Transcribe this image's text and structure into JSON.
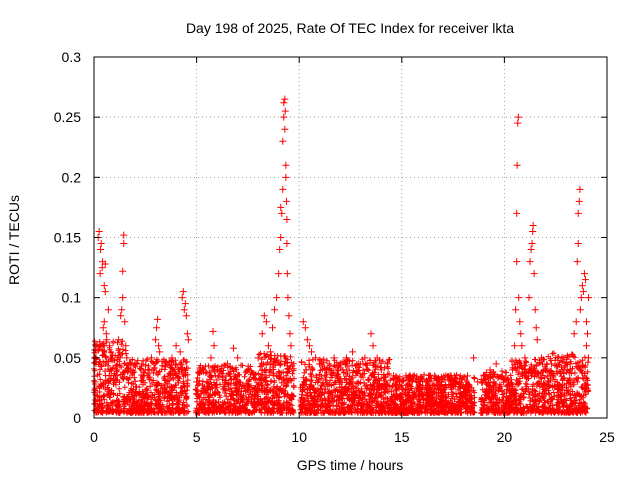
{
  "chart_data": {
    "type": "scatter",
    "title": "Day 198 of 2025, Rate Of TEC Index for receiver lkta",
    "xlabel": "GPS time / hours",
    "ylabel": "ROTI / TECUs",
    "xlim": [
      0,
      25
    ],
    "ylim": [
      0,
      0.3
    ],
    "x_ticks": [
      0,
      5,
      10,
      15,
      20,
      25
    ],
    "x_tick_labels": [
      "0",
      "5",
      "10",
      "15",
      "20",
      "25"
    ],
    "y_ticks": [
      0,
      0.05,
      0.1,
      0.15,
      0.2,
      0.25,
      0.3
    ],
    "y_tick_labels": [
      "0",
      "0.05",
      "0.1",
      "0.15",
      "0.2",
      "0.25",
      "0.3"
    ],
    "grid": true,
    "marker": "+",
    "color": "#ff0000",
    "series": [
      {
        "name": "ROTI",
        "points": [
          [
            0.05,
            0.03
          ],
          [
            0.1,
            0.05
          ],
          [
            0.15,
            0.06
          ],
          [
            0.2,
            0.15
          ],
          [
            0.25,
            0.155
          ],
          [
            0.3,
            0.12
          ],
          [
            0.32,
            0.14
          ],
          [
            0.35,
            0.145
          ],
          [
            0.4,
            0.125
          ],
          [
            0.42,
            0.13
          ],
          [
            0.45,
            0.075
          ],
          [
            0.5,
            0.08
          ],
          [
            0.5,
            0.11
          ],
          [
            0.55,
            0.105
          ],
          [
            0.55,
            0.128
          ],
          [
            0.6,
            0.07
          ],
          [
            0.62,
            0.065
          ],
          [
            0.7,
            0.09
          ],
          [
            0.75,
            0.06
          ],
          [
            0.8,
            0.05
          ],
          [
            1.2,
            0.065
          ],
          [
            1.3,
            0.085
          ],
          [
            1.35,
            0.09
          ],
          [
            1.4,
            0.1
          ],
          [
            1.4,
            0.122
          ],
          [
            1.45,
            0.145
          ],
          [
            1.45,
            0.152
          ],
          [
            1.5,
            0.08
          ],
          [
            1.55,
            0.06
          ],
          [
            1.6,
            0.05
          ],
          [
            1.8,
            0.04
          ],
          [
            2.0,
            0.045
          ],
          [
            2.5,
            0.04
          ],
          [
            2.8,
            0.05
          ],
          [
            3.0,
            0.065
          ],
          [
            3.05,
            0.075
          ],
          [
            3.1,
            0.082
          ],
          [
            3.15,
            0.06
          ],
          [
            3.2,
            0.055
          ],
          [
            3.5,
            0.045
          ],
          [
            3.8,
            0.05
          ],
          [
            4.0,
            0.06
          ],
          [
            4.2,
            0.055
          ],
          [
            4.3,
            0.1
          ],
          [
            4.35,
            0.105
          ],
          [
            4.4,
            0.09
          ],
          [
            4.45,
            0.095
          ],
          [
            4.5,
            0.085
          ],
          [
            4.55,
            0.07
          ],
          [
            4.6,
            0.065
          ],
          [
            4.2,
            0.045
          ],
          [
            5.0,
            0.03
          ],
          [
            5.5,
            0.03
          ],
          [
            5.7,
            0.05
          ],
          [
            5.8,
            0.072
          ],
          [
            5.85,
            0.06
          ],
          [
            6.0,
            0.04
          ],
          [
            6.5,
            0.045
          ],
          [
            6.8,
            0.058
          ],
          [
            7.0,
            0.05
          ],
          [
            7.5,
            0.04
          ],
          [
            8.0,
            0.05
          ],
          [
            8.2,
            0.07
          ],
          [
            8.3,
            0.085
          ],
          [
            8.4,
            0.08
          ],
          [
            8.5,
            0.06
          ],
          [
            8.6,
            0.055
          ],
          [
            8.7,
            0.075
          ],
          [
            8.8,
            0.09
          ],
          [
            8.9,
            0.1
          ],
          [
            9.0,
            0.12
          ],
          [
            9.05,
            0.14
          ],
          [
            9.1,
            0.15
          ],
          [
            9.1,
            0.175
          ],
          [
            9.15,
            0.17
          ],
          [
            9.2,
            0.19
          ],
          [
            9.2,
            0.23
          ],
          [
            9.25,
            0.25
          ],
          [
            9.25,
            0.262
          ],
          [
            9.3,
            0.265
          ],
          [
            9.3,
            0.24
          ],
          [
            9.32,
            0.255
          ],
          [
            9.35,
            0.21
          ],
          [
            9.35,
            0.2
          ],
          [
            9.38,
            0.18
          ],
          [
            9.4,
            0.165
          ],
          [
            9.4,
            0.145
          ],
          [
            9.42,
            0.12
          ],
          [
            9.45,
            0.1
          ],
          [
            9.5,
            0.085
          ],
          [
            9.55,
            0.07
          ],
          [
            9.6,
            0.06
          ],
          [
            10.2,
            0.08
          ],
          [
            10.3,
            0.075
          ],
          [
            10.4,
            0.065
          ],
          [
            10.5,
            0.06
          ],
          [
            10.6,
            0.055
          ],
          [
            10.8,
            0.05
          ],
          [
            11.0,
            0.045
          ],
          [
            11.3,
            0.04
          ],
          [
            11.7,
            0.05
          ],
          [
            12.0,
            0.045
          ],
          [
            12.3,
            0.05
          ],
          [
            12.6,
            0.055
          ],
          [
            12.9,
            0.045
          ],
          [
            13.2,
            0.05
          ],
          [
            13.5,
            0.07
          ],
          [
            13.6,
            0.06
          ],
          [
            13.8,
            0.05
          ],
          [
            14.0,
            0.04
          ],
          [
            14.3,
            0.045
          ],
          [
            14.6,
            0.035
          ],
          [
            14.9,
            0.03
          ],
          [
            15.2,
            0.035
          ],
          [
            15.5,
            0.03
          ],
          [
            15.8,
            0.032
          ],
          [
            16.2,
            0.03
          ],
          [
            16.6,
            0.035
          ],
          [
            17.0,
            0.032
          ],
          [
            17.4,
            0.035
          ],
          [
            17.8,
            0.03
          ],
          [
            18.2,
            0.035
          ],
          [
            18.5,
            0.05
          ],
          [
            18.7,
            0.03
          ],
          [
            19.0,
            0.035
          ],
          [
            19.3,
            0.04
          ],
          [
            19.6,
            0.045
          ],
          [
            19.9,
            0.035
          ],
          [
            20.2,
            0.03
          ],
          [
            20.4,
            0.04
          ],
          [
            20.5,
            0.06
          ],
          [
            20.55,
            0.09
          ],
          [
            20.6,
            0.13
          ],
          [
            20.6,
            0.17
          ],
          [
            20.62,
            0.21
          ],
          [
            20.65,
            0.245
          ],
          [
            20.68,
            0.25
          ],
          [
            20.7,
            0.1
          ],
          [
            20.75,
            0.08
          ],
          [
            20.8,
            0.07
          ],
          [
            20.85,
            0.06
          ],
          [
            21.0,
            0.05
          ],
          [
            21.2,
            0.1
          ],
          [
            21.25,
            0.13
          ],
          [
            21.3,
            0.14
          ],
          [
            21.35,
            0.145
          ],
          [
            21.38,
            0.155
          ],
          [
            21.4,
            0.16
          ],
          [
            21.45,
            0.12
          ],
          [
            21.5,
            0.09
          ],
          [
            21.55,
            0.075
          ],
          [
            21.6,
            0.065
          ],
          [
            21.8,
            0.05
          ],
          [
            22.0,
            0.04
          ],
          [
            22.3,
            0.045
          ],
          [
            22.6,
            0.05
          ],
          [
            22.9,
            0.04
          ],
          [
            23.2,
            0.045
          ],
          [
            23.4,
            0.07
          ],
          [
            23.5,
            0.08
          ],
          [
            23.55,
            0.13
          ],
          [
            23.6,
            0.145
          ],
          [
            23.6,
            0.17
          ],
          [
            23.65,
            0.18
          ],
          [
            23.68,
            0.19
          ],
          [
            23.7,
            0.09
          ],
          [
            23.75,
            0.1
          ],
          [
            23.8,
            0.11
          ],
          [
            23.85,
            0.105
          ],
          [
            23.9,
            0.12
          ],
          [
            23.95,
            0.115
          ],
          [
            24.0,
            0.08
          ],
          [
            24.0,
            0.06
          ],
          [
            24.05,
            0.07
          ],
          [
            24.1,
            0.1
          ],
          [
            24.1,
            0.05
          ]
        ]
      }
    ]
  }
}
